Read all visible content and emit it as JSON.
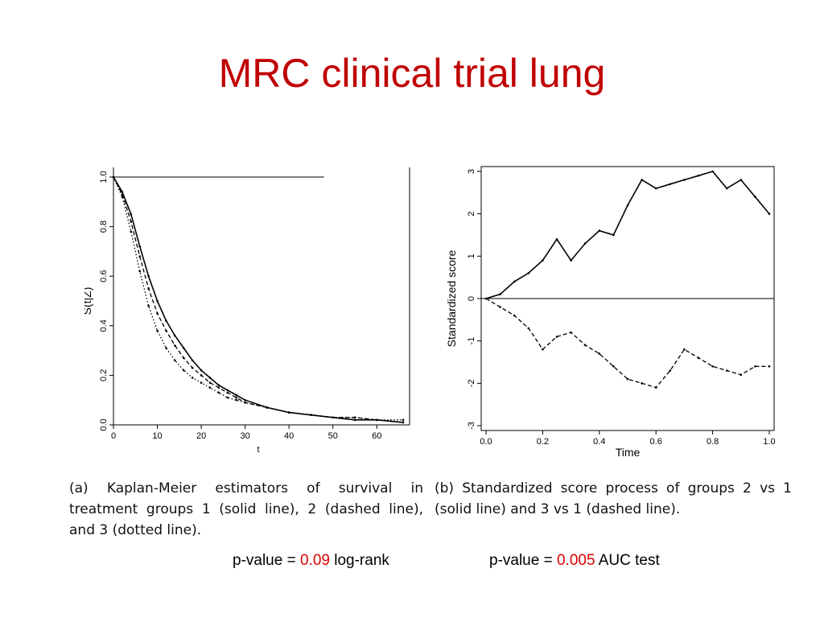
{
  "title": "MRC clinical trial lung",
  "chart_data": [
    {
      "type": "line",
      "ylabel": "Ŝ(t|Z)",
      "xlabel": "t",
      "xlim": [
        0,
        66
      ],
      "ylim": [
        0,
        1.0
      ],
      "x_ticks": [
        "0",
        "10",
        "20",
        "30",
        "40",
        "50",
        "60"
      ],
      "y_ticks": [
        "0.0",
        "0.2",
        "0.4",
        "0.6",
        "0.8",
        "1.0"
      ],
      "x": [
        0,
        2,
        4,
        6,
        8,
        10,
        12,
        14,
        16,
        18,
        20,
        22,
        24,
        26,
        28,
        30,
        35,
        40,
        45,
        50,
        55,
        60,
        66
      ],
      "series": [
        {
          "style": "solid",
          "values": [
            1.0,
            0.94,
            0.85,
            0.72,
            0.6,
            0.5,
            0.42,
            0.36,
            0.31,
            0.26,
            0.22,
            0.19,
            0.16,
            0.14,
            0.12,
            0.1,
            0.07,
            0.05,
            0.04,
            0.03,
            0.02,
            0.02,
            0.01
          ]
        },
        {
          "style": "dashed",
          "values": [
            1.0,
            0.93,
            0.82,
            0.68,
            0.55,
            0.45,
            0.38,
            0.32,
            0.27,
            0.23,
            0.2,
            0.17,
            0.15,
            0.13,
            0.11,
            0.09,
            0.07,
            0.05,
            0.04,
            0.03,
            0.03,
            0.02,
            0.01
          ]
        },
        {
          "style": "dotted",
          "values": [
            1.0,
            0.92,
            0.78,
            0.62,
            0.48,
            0.38,
            0.31,
            0.26,
            0.22,
            0.19,
            0.17,
            0.15,
            0.13,
            0.11,
            0.1,
            0.09,
            0.07,
            0.05,
            0.04,
            0.03,
            0.03,
            0.02,
            0.02
          ]
        }
      ],
      "grid": false
    },
    {
      "type": "line",
      "ylabel": "Standardized score",
      "xlabel": "Time",
      "xlim": [
        0,
        1.0
      ],
      "ylim": [
        -3,
        3
      ],
      "x_ticks": [
        "0.0",
        "0.2",
        "0.4",
        "0.6",
        "0.8",
        "1.0"
      ],
      "y_ticks": [
        "-3",
        "-2",
        "-1",
        "0",
        "1",
        "2",
        "3"
      ],
      "x": [
        0,
        0.05,
        0.1,
        0.15,
        0.2,
        0.25,
        0.3,
        0.35,
        0.4,
        0.45,
        0.5,
        0.55,
        0.6,
        0.65,
        0.7,
        0.75,
        0.8,
        0.85,
        0.9,
        0.95,
        1.0
      ],
      "series": [
        {
          "style": "solid",
          "values": [
            0,
            0.1,
            0.4,
            0.6,
            0.9,
            1.4,
            0.9,
            1.3,
            1.6,
            1.5,
            2.2,
            2.8,
            2.6,
            2.7,
            2.8,
            2.9,
            3.0,
            2.6,
            2.8,
            2.4,
            2.0
          ]
        },
        {
          "style": "dashed",
          "values": [
            0,
            -0.2,
            -0.4,
            -0.7,
            -1.2,
            -0.9,
            -0.8,
            -1.1,
            -1.3,
            -1.6,
            -1.9,
            -2.0,
            -2.1,
            -1.7,
            -1.2,
            -1.4,
            -1.6,
            -1.7,
            -1.8,
            -1.6,
            -1.6
          ]
        }
      ],
      "zero_line": true,
      "grid": false
    }
  ],
  "captions": {
    "a": "(a) Kaplan-Meier estimators of survival in treatment groups 1 (solid line), 2 (dashed line), and 3 (dotted line).",
    "b": "(b) Standardized score process of groups 2 vs 1 (solid line) and 3 vs 1 (dashed line)."
  },
  "pvalues": {
    "a": {
      "prefix": "p-value = ",
      "value": "0.09",
      "suffix": " log-rank"
    },
    "b": {
      "prefix": "p-value = ",
      "value": "0.005",
      "suffix": "  AUC test"
    }
  },
  "colors": {
    "title": "#c00000",
    "pvalue": "#d90000"
  }
}
